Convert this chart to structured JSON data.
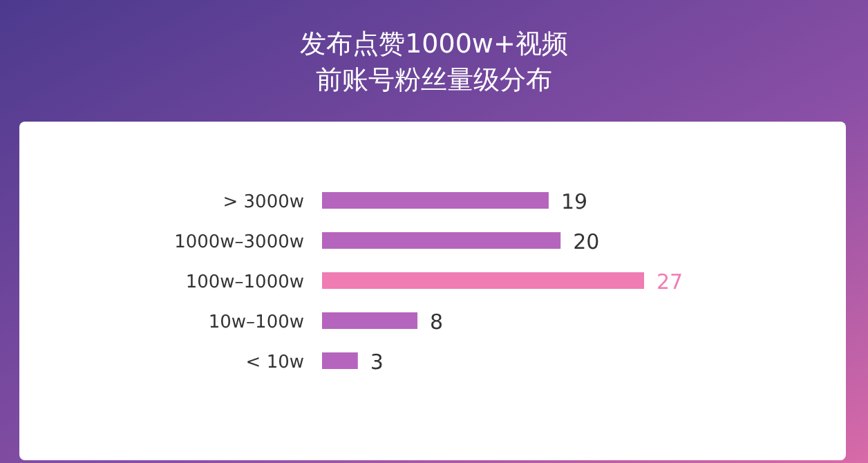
{
  "chart_data": {
    "type": "bar",
    "orientation": "horizontal",
    "title": "发布点赞1000w+视频前账号粉丝量级分布",
    "categories": [
      "> 3000w",
      "1000w–3000w",
      "100w–1000w",
      "10w–100w",
      "< 10w"
    ],
    "values": [
      19,
      20,
      27,
      8,
      3
    ],
    "colors": [
      "#b565bd",
      "#b565bd",
      "#f07cb4",
      "#b565bd",
      "#b565bd"
    ],
    "data_labels": true
  }
}
